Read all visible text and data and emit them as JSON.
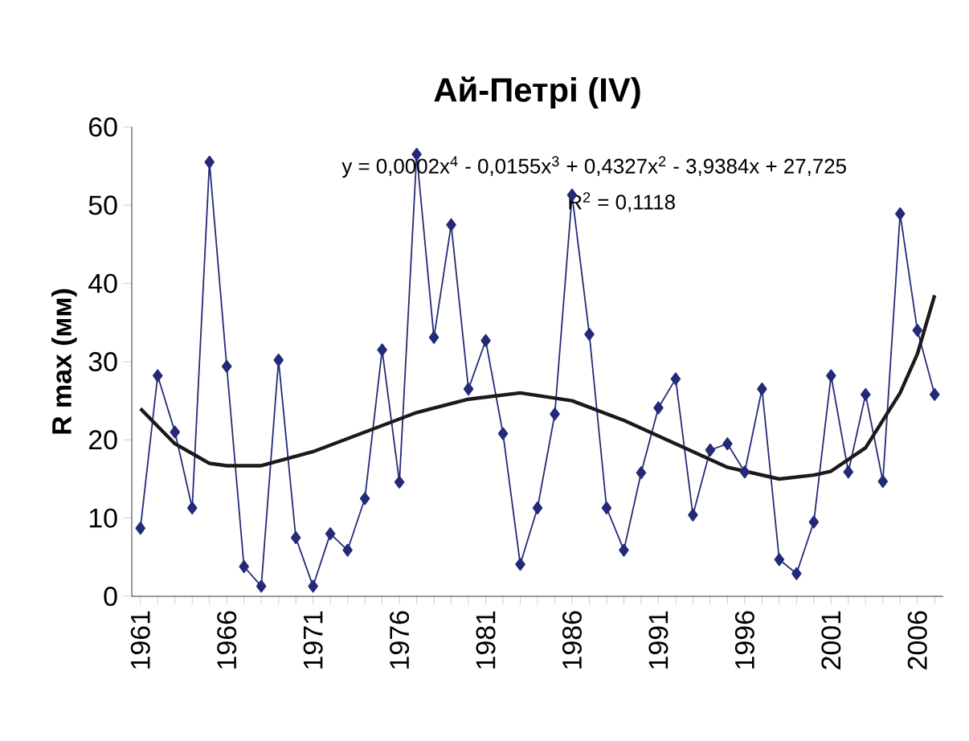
{
  "chart_data": {
    "type": "line",
    "title": "Ай-Петрі (IV)",
    "ylabel": "R max (мм)",
    "annotations": [
      "y = 0,0002x$^{4}$ - 0,0155x$^{3}$ + 0,4327x$^{2}$ - 3,9384x + 27,725",
      "R$^{2}$ = 0,1118"
    ],
    "xlim": [
      1960.5,
      2007.5
    ],
    "xticks": [
      {
        "value": 1961,
        "label": "1961"
      },
      {
        "value": 1962,
        "label": null
      },
      {
        "value": 1963,
        "label": null
      },
      {
        "value": 1964,
        "label": null
      },
      {
        "value": 1965,
        "label": null
      },
      {
        "value": 1966,
        "label": "1966"
      },
      {
        "value": 1967,
        "label": null
      },
      {
        "value": 1968,
        "label": null
      },
      {
        "value": 1969,
        "label": null
      },
      {
        "value": 1970,
        "label": null
      },
      {
        "value": 1971,
        "label": "1971"
      },
      {
        "value": 1972,
        "label": null
      },
      {
        "value": 1973,
        "label": null
      },
      {
        "value": 1974,
        "label": null
      },
      {
        "value": 1975,
        "label": null
      },
      {
        "value": 1976,
        "label": "1976"
      },
      {
        "value": 1977,
        "label": null
      },
      {
        "value": 1978,
        "label": null
      },
      {
        "value": 1979,
        "label": null
      },
      {
        "value": 1980,
        "label": null
      },
      {
        "value": 1981,
        "label": "1981"
      },
      {
        "value": 1982,
        "label": null
      },
      {
        "value": 1983,
        "label": null
      },
      {
        "value": 1984,
        "label": null
      },
      {
        "value": 1985,
        "label": null
      },
      {
        "value": 1986,
        "label": "1986"
      },
      {
        "value": 1987,
        "label": null
      },
      {
        "value": 1988,
        "label": null
      },
      {
        "value": 1989,
        "label": null
      },
      {
        "value": 1990,
        "label": null
      },
      {
        "value": 1991,
        "label": "1991"
      },
      {
        "value": 1992,
        "label": null
      },
      {
        "value": 1993,
        "label": null
      },
      {
        "value": 1994,
        "label": null
      },
      {
        "value": 1995,
        "label": null
      },
      {
        "value": 1996,
        "label": "1996"
      },
      {
        "value": 1997,
        "label": null
      },
      {
        "value": 1998,
        "label": null
      },
      {
        "value": 1999,
        "label": null
      },
      {
        "value": 2000,
        "label": null
      },
      {
        "value": 2001,
        "label": "2001"
      },
      {
        "value": 2002,
        "label": null
      },
      {
        "value": 2003,
        "label": null
      },
      {
        "value": 2004,
        "label": null
      },
      {
        "value": 2005,
        "label": null
      },
      {
        "value": 2006,
        "label": "2006"
      },
      {
        "value": 2007,
        "label": null
      }
    ],
    "ylim": [
      0,
      60
    ],
    "yticks": [
      0,
      10,
      20,
      30,
      40,
      50,
      60
    ],
    "grid": false,
    "legend": false,
    "series": [
      {
        "color": "#232a78",
        "marker": "diamond",
        "x": [
          1961,
          1962,
          1963,
          1964,
          1965,
          1966,
          1967,
          1968,
          1969,
          1970,
          1971,
          1972,
          1973,
          1974,
          1975,
          1976,
          1977,
          1978,
          1979,
          1980,
          1981,
          1982,
          1983,
          1984,
          1985,
          1986,
          1987,
          1988,
          1989,
          1990,
          1991,
          1992,
          1993,
          1994,
          1995,
          1996,
          1997,
          1998,
          1999,
          2000,
          2001,
          2002,
          2003,
          2004,
          2005,
          2006,
          2007
        ],
        "values": [
          8.7,
          28.2,
          21,
          11.3,
          55.5,
          29.4,
          3.8,
          1.3,
          30.2,
          7.5,
          1.3,
          8,
          5.9,
          12.5,
          31.5,
          14.6,
          56.5,
          33.1,
          47.5,
          26.5,
          32.7,
          20.8,
          4.1,
          11.3,
          23.3,
          51.3,
          33.5,
          11.3,
          5.9,
          15.8,
          24.1,
          27.8,
          10.4,
          18.7,
          19.5,
          15.9,
          26.5,
          4.7,
          2.9,
          9.5,
          28.2,
          15.9,
          25.8,
          14.7,
          48.9,
          34,
          25.8
        ]
      },
      {
        "color": "#1a1a1a",
        "marker": "none",
        "x": [
          1961,
          1963,
          1965,
          1966,
          1968,
          1971,
          1974,
          1977,
          1980,
          1983,
          1986,
          1989,
          1992,
          1995,
          1998,
          2000,
          2001,
          2003,
          2005,
          2006,
          2007
        ],
        "values": [
          24,
          19.5,
          17,
          16.7,
          16.7,
          18.5,
          21,
          23.5,
          25.2,
          26,
          25,
          22.5,
          19.5,
          16.5,
          15,
          15.5,
          16,
          19,
          26,
          31,
          38.5
        ]
      }
    ]
  }
}
